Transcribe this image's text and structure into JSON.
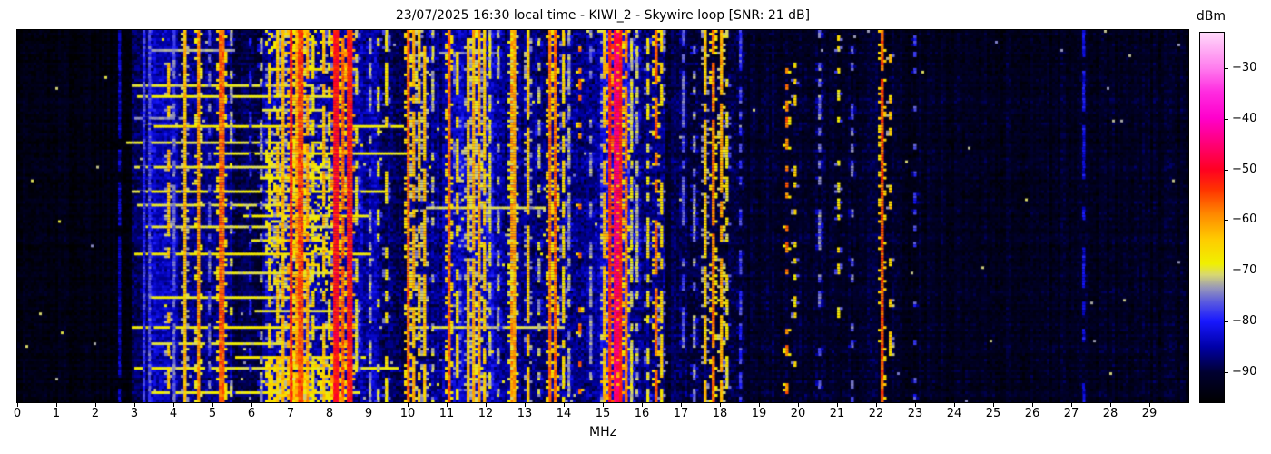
{
  "title": "23/07/2025 16:30 local time - KIWI_2 - Skywire loop [SNR: 21 dB]",
  "x_axis": {
    "label": "MHz",
    "min_mhz": 0,
    "max_mhz": 30,
    "ticks": [
      0,
      1,
      2,
      3,
      4,
      5,
      6,
      7,
      8,
      9,
      10,
      11,
      12,
      13,
      14,
      15,
      16,
      17,
      18,
      19,
      20,
      21,
      22,
      23,
      24,
      25,
      26,
      27,
      28,
      29
    ]
  },
  "colorbar": {
    "label": "dBm",
    "ticks_dbm": [
      -30,
      -40,
      -50,
      -60,
      -70,
      -80,
      -90
    ]
  },
  "chart_data": {
    "type": "heatmap",
    "subtype": "radio-spectrum-waterfall",
    "title": "23/07/2025 16:30 local time - KIWI_2 - Skywire loop [SNR: 21 dB]",
    "xlabel": "MHz",
    "ylabel": "",
    "x_range_mhz": [
      0,
      30
    ],
    "x_ticks_mhz": [
      0,
      1,
      2,
      3,
      4,
      5,
      6,
      7,
      8,
      9,
      10,
      11,
      12,
      13,
      14,
      15,
      16,
      17,
      18,
      19,
      20,
      21,
      22,
      23,
      24,
      25,
      26,
      27,
      28,
      29
    ],
    "colorbar_label": "dBm",
    "colorbar_ticks_dbm": [
      -30,
      -40,
      -50,
      -60,
      -70,
      -80,
      -90
    ],
    "value_range_dbm": [
      -96,
      -23
    ],
    "snr_db": 21,
    "receiver": "KIWI_2",
    "antenna": "Skywire loop",
    "timestamp_local": "23/07/2025 16:30",
    "grid": {
      "cols": 430,
      "rows": 137
    },
    "seed": 1337,
    "colormap": [
      [
        0.0,
        "#000000"
      ],
      [
        0.08,
        "#000030"
      ],
      [
        0.15,
        "#0000a8"
      ],
      [
        0.22,
        "#1818ff"
      ],
      [
        0.27,
        "#5858e0"
      ],
      [
        0.31,
        "#9898b8"
      ],
      [
        0.345,
        "#d8d870"
      ],
      [
        0.375,
        "#f0f000"
      ],
      [
        0.44,
        "#ffcc00"
      ],
      [
        0.51,
        "#ff8800"
      ],
      [
        0.575,
        "#ff3300"
      ],
      [
        0.63,
        "#ff0022"
      ],
      [
        0.7,
        "#ff0077"
      ],
      [
        0.77,
        "#ff00cc"
      ],
      [
        0.84,
        "#ff2ce0"
      ],
      [
        0.905,
        "#ff7dee"
      ],
      [
        1.0,
        "#ffd9fa"
      ]
    ],
    "noise_bands_legend": "[f_start_mhz, f_end_mhz, mean_floor_dbm, variance_db]",
    "noise_bands": [
      [
        0.0,
        2.9,
        -93.5,
        2.5
      ],
      [
        2.9,
        3.4,
        -88,
        4
      ],
      [
        3.4,
        4.15,
        -83,
        4
      ],
      [
        4.15,
        5.5,
        -86.5,
        4
      ],
      [
        5.5,
        6.3,
        -89.5,
        3.5
      ],
      [
        6.3,
        9.3,
        -85,
        4.5
      ],
      [
        9.3,
        10.0,
        -88,
        4
      ],
      [
        10.0,
        10.9,
        -86.5,
        4.5
      ],
      [
        10.9,
        12.4,
        -84,
        5
      ],
      [
        12.4,
        13.0,
        -86,
        4.5
      ],
      [
        13.0,
        14.9,
        -86.5,
        4.5
      ],
      [
        14.9,
        15.7,
        -82,
        5
      ],
      [
        15.7,
        16.6,
        -87,
        4.5
      ],
      [
        16.6,
        18.6,
        -89.5,
        3.5
      ],
      [
        18.6,
        22.6,
        -91,
        3
      ],
      [
        22.6,
        30.0,
        -92,
        2.8
      ]
    ],
    "signals_legend": "[freq_mhz, peak_dbm, width_bins, duty_fraction, dash_segment_rows]",
    "signals": [
      [
        2.55,
        -84,
        1,
        0.9,
        4
      ],
      [
        3.2,
        -79,
        1,
        1,
        3
      ],
      [
        3.35,
        -77,
        1,
        1,
        3
      ],
      [
        3.86,
        -64,
        1,
        0.5,
        4
      ],
      [
        4.0,
        -76,
        1,
        0.8,
        3
      ],
      [
        4.28,
        -63,
        1,
        1,
        3
      ],
      [
        4.6,
        -60,
        1,
        0.95,
        3
      ],
      [
        4.85,
        -76,
        1,
        0.5,
        3
      ],
      [
        5.18,
        -57,
        2,
        1,
        3
      ],
      [
        5.45,
        -72,
        1,
        0.4,
        3
      ],
      [
        5.9,
        -80,
        1,
        0.5,
        3
      ],
      [
        6.2,
        -73,
        1,
        0.6,
        3
      ],
      [
        6.45,
        -66,
        1,
        0.5,
        3
      ],
      [
        6.62,
        -64,
        1,
        0.8,
        3
      ],
      [
        6.8,
        -63,
        1,
        0.9,
        3
      ],
      [
        7.0,
        -53,
        1,
        1,
        3
      ],
      [
        7.12,
        -60,
        1,
        0.9,
        3
      ],
      [
        7.22,
        -55,
        2,
        1,
        3
      ],
      [
        7.38,
        -61,
        1,
        0.8,
        3
      ],
      [
        7.55,
        -67,
        1,
        0.6,
        3
      ],
      [
        7.8,
        -63,
        1,
        0.75,
        4
      ],
      [
        7.95,
        -67,
        1,
        0.5,
        3
      ],
      [
        8.12,
        -51,
        2,
        1,
        3
      ],
      [
        8.33,
        -57,
        1,
        0.95,
        3
      ],
      [
        8.46,
        -52,
        2,
        1,
        3
      ],
      [
        8.62,
        -69,
        1,
        0.5,
        3
      ],
      [
        9.0,
        -73,
        1,
        0.6,
        3
      ],
      [
        9.2,
        -70,
        1,
        0.4,
        3
      ],
      [
        9.42,
        -67,
        1,
        0.5,
        4
      ],
      [
        9.98,
        -57,
        1,
        1,
        3
      ],
      [
        10.14,
        -62,
        1,
        0.9,
        3
      ],
      [
        10.27,
        -64,
        1,
        0.8,
        3
      ],
      [
        10.4,
        -63,
        1,
        0.85,
        3
      ],
      [
        10.62,
        -72,
        1,
        0.4,
        3
      ],
      [
        11.05,
        -57,
        1,
        1,
        3
      ],
      [
        11.22,
        -66,
        1,
        0.6,
        4
      ],
      [
        11.52,
        -64,
        1,
        0.9,
        3
      ],
      [
        11.66,
        -62,
        1,
        0.95,
        3
      ],
      [
        11.8,
        -61,
        1,
        0.95,
        3
      ],
      [
        11.95,
        -64,
        1,
        0.9,
        3
      ],
      [
        12.1,
        -70,
        1,
        0.7,
        3
      ],
      [
        12.25,
        -72,
        1,
        0.6,
        3
      ],
      [
        12.6,
        -60,
        1,
        1,
        3
      ],
      [
        12.73,
        -61,
        1,
        1,
        3
      ],
      [
        13.05,
        -64,
        1,
        0.8,
        4
      ],
      [
        13.3,
        -72,
        1,
        0.5,
        3
      ],
      [
        13.62,
        -58,
        1,
        1,
        3
      ],
      [
        13.76,
        -57,
        1,
        1,
        3
      ],
      [
        13.92,
        -66,
        1,
        0.7,
        3
      ],
      [
        14.12,
        -73,
        1,
        0.6,
        3
      ],
      [
        14.36,
        -58,
        1,
        0.18,
        2
      ],
      [
        14.65,
        -74,
        1,
        0.5,
        3
      ],
      [
        15.02,
        -63,
        1,
        0.9,
        3
      ],
      [
        15.16,
        -53,
        1,
        1,
        3
      ],
      [
        15.3,
        -46,
        2,
        1,
        3
      ],
      [
        15.44,
        -52,
        1,
        1,
        3
      ],
      [
        15.57,
        -58,
        1,
        0.9,
        3
      ],
      [
        15.73,
        -70,
        1,
        0.8,
        3
      ],
      [
        15.87,
        -72,
        1,
        0.7,
        3
      ],
      [
        16.1,
        -68,
        1,
        0.5,
        3
      ],
      [
        16.3,
        -57,
        1,
        0.65,
        5
      ],
      [
        16.46,
        -66,
        1,
        0.5,
        4
      ],
      [
        17.02,
        -76,
        1,
        0.6,
        3
      ],
      [
        17.32,
        -74,
        1,
        0.5,
        3
      ],
      [
        17.6,
        -64,
        1,
        0.85,
        3
      ],
      [
        17.82,
        -58,
        1,
        0.9,
        3
      ],
      [
        18.0,
        -62,
        1,
        0.85,
        3
      ],
      [
        18.16,
        -68,
        1,
        0.5,
        3
      ],
      [
        18.52,
        -78,
        1,
        0.5,
        3
      ],
      [
        19.7,
        -58,
        1,
        0.18,
        2
      ],
      [
        19.85,
        -66,
        1,
        0.25,
        2
      ],
      [
        20.5,
        -75,
        1,
        0.5,
        3
      ],
      [
        21.0,
        -68,
        1,
        0.3,
        2
      ],
      [
        21.32,
        -76,
        1,
        0.4,
        3
      ],
      [
        22.15,
        -56,
        1,
        0.95,
        3
      ],
      [
        22.32,
        -64,
        1,
        0.35,
        3
      ],
      [
        22.95,
        -78,
        1,
        0.3,
        2
      ],
      [
        27.3,
        -82,
        1,
        0.6,
        5
      ]
    ],
    "streaks_legend": "[row_fraction_from_top, f_start_mhz, f_end_mhz, level_dbm]",
    "streaks": [
      [
        0.055,
        3.3,
        5.6,
        -73
      ],
      [
        0.06,
        10.8,
        12.3,
        -74
      ],
      [
        0.1,
        6.4,
        8.7,
        -68
      ],
      [
        0.145,
        2.9,
        7.6,
        -70
      ],
      [
        0.175,
        3.1,
        8.2,
        -69
      ],
      [
        0.21,
        6.3,
        7.9,
        -70
      ],
      [
        0.235,
        3.0,
        4.3,
        -74
      ],
      [
        0.26,
        3.2,
        9.9,
        -68
      ],
      [
        0.3,
        2.8,
        7.2,
        -70
      ],
      [
        0.33,
        5.0,
        10.2,
        -69
      ],
      [
        0.37,
        3.0,
        8.0,
        -70
      ],
      [
        0.4,
        6.2,
        8.4,
        -68
      ],
      [
        0.435,
        2.9,
        9.5,
        -69
      ],
      [
        0.47,
        3.1,
        7.1,
        -70
      ],
      [
        0.475,
        10.5,
        13.5,
        -71
      ],
      [
        0.5,
        5.8,
        9.0,
        -68
      ],
      [
        0.53,
        3.3,
        8.3,
        -70
      ],
      [
        0.565,
        6.0,
        7.8,
        -69
      ],
      [
        0.6,
        3.0,
        9.1,
        -68
      ],
      [
        0.655,
        4.9,
        8.6,
        -70
      ],
      [
        0.72,
        3.2,
        7.4,
        -69
      ],
      [
        0.76,
        6.1,
        8.8,
        -70
      ],
      [
        0.8,
        2.9,
        8.1,
        -68
      ],
      [
        0.805,
        10.2,
        14.0,
        -71
      ],
      [
        0.845,
        3.4,
        7.0,
        -70
      ],
      [
        0.88,
        5.6,
        8.9,
        -68
      ],
      [
        0.915,
        3.0,
        9.8,
        -69
      ],
      [
        0.95,
        6.3,
        8.5,
        -68
      ],
      [
        0.975,
        3.2,
        8.8,
        -69
      ]
    ],
    "blobs_legend": "[f_start_mhz, f_end_mhz, row_frac_start, row_frac_end, probability, level_dbm, variance_db]",
    "blobs": [
      [
        6.35,
        8.1,
        0.3,
        0.7,
        0.35,
        -68,
        4
      ],
      [
        6.35,
        8.1,
        0.88,
        1.0,
        0.5,
        -66,
        4
      ],
      [
        6.35,
        8.1,
        0.0,
        0.06,
        0.3,
        -68,
        4
      ],
      [
        11.3,
        12.1,
        0.3,
        0.6,
        0.15,
        -72,
        3
      ]
    ]
  }
}
